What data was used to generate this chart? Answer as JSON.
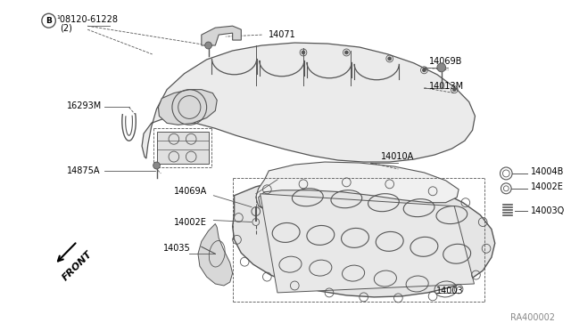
{
  "bg_color": "#ffffff",
  "line_color": "#555555",
  "text_color": "#000000",
  "gray_fill": "#e8e8e8",
  "dark_line": "#333333",
  "ref_text": "RA400002",
  "labels": {
    "bolt_ref": "¹08120-61228",
    "bolt_qty": "(2)",
    "l14071": "14071",
    "l14069B": "14069B",
    "l14013M": "14013M",
    "l16293M": "16293M",
    "l14875A": "14875A",
    "l14069A": "14069A",
    "l14010A": "14010A",
    "l14002E_lo": "14002E",
    "l14035": "14035",
    "l14003": "14003",
    "l14004B": "14004B",
    "l14002E_ri": "14002E",
    "l14003Q": "14003Q",
    "front": "FRONT"
  }
}
